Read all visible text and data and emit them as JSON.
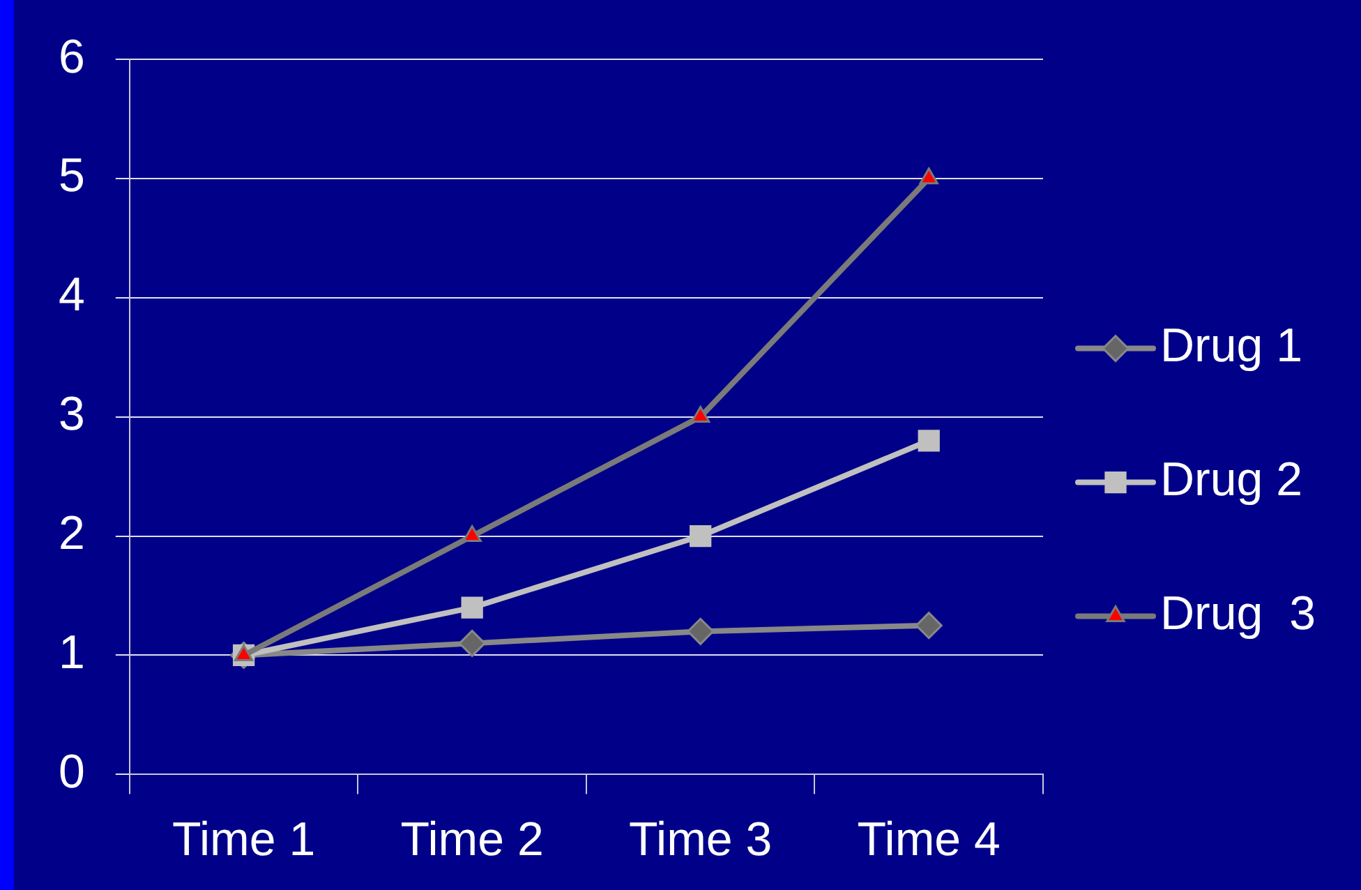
{
  "chart_data": {
    "type": "line",
    "categories": [
      "Time 1",
      "Time 2",
      "Time 3",
      "Time 4"
    ],
    "series": [
      {
        "name": "Drug 1",
        "color": "#888888",
        "marker": "diamond",
        "colors": [
          "#666666",
          "#666666",
          "#666666",
          "#666666"
        ],
        "values": [
          1,
          1.1,
          1.2,
          1.25
        ]
      },
      {
        "name": "Drug 2",
        "color": "#c0c0c0",
        "marker": "square",
        "values": [
          1,
          1.4,
          2,
          2.8
        ]
      },
      {
        "name": "Drug  3",
        "color": "#7a7a7a",
        "marker": "triangle",
        "colors": [
          "#ff0000",
          "#ff0000",
          "#ff0000",
          "#ff0000"
        ],
        "values": [
          1,
          2,
          3,
          5
        ]
      }
    ],
    "ylim": [
      0,
      6
    ],
    "yticks": [
      0,
      1,
      2,
      3,
      4,
      5,
      6
    ],
    "grid": "y",
    "legend": "right",
    "line_style": "solid"
  }
}
